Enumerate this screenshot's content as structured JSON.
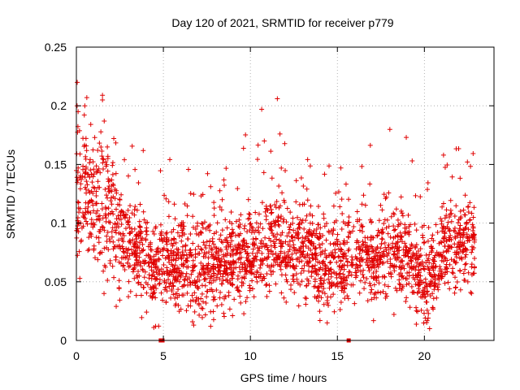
{
  "chart_data": {
    "type": "scatter",
    "title": "Day 120 of 2021, SRMTID for receiver p779",
    "xlabel": "GPS time / hours",
    "ylabel": "SRMTID / TECUs",
    "xlim": [
      0,
      24
    ],
    "ylim": [
      0,
      0.25
    ],
    "xticks": [
      0,
      5,
      10,
      15,
      20
    ],
    "yticks": [
      0,
      0.05,
      0.1,
      0.15,
      0.2,
      0.25
    ],
    "xtick_labels": [
      "0",
      "5",
      "10",
      "15",
      "20"
    ],
    "ytick_labels": [
      "0",
      "0.05",
      "0.1",
      "0.15",
      "0.2",
      "0.25"
    ],
    "grid": true,
    "marker": "+",
    "color": "#e00000",
    "x_data_range": [
      0,
      22.9
    ],
    "outlier_points": [
      [
        0.05,
        0.22
      ],
      [
        0.1,
        0.195
      ],
      [
        0.6,
        0.207
      ],
      [
        1.5,
        0.209
      ],
      [
        1.5,
        0.205
      ],
      [
        1.6,
        0.187
      ],
      [
        10.65,
        0.197
      ],
      [
        11.55,
        0.206
      ],
      [
        11.7,
        0.176
      ],
      [
        10.8,
        0.17
      ],
      [
        15.2,
        0.147
      ],
      [
        21.1,
        0.158
      ],
      [
        20.3,
        0.01
      ],
      [
        4.45,
        0.011
      ],
      [
        14.0,
        0.017
      ]
    ],
    "zero_markers": [
      [
        4.85,
        0.0
      ],
      [
        4.95,
        0.0
      ],
      [
        15.65,
        0.0
      ]
    ],
    "trend": [
      [
        0.0,
        0.115
      ],
      [
        0.5,
        0.128
      ],
      [
        1.0,
        0.112
      ],
      [
        1.5,
        0.112
      ],
      [
        2.0,
        0.108
      ],
      [
        2.5,
        0.098
      ],
      [
        3.0,
        0.08
      ],
      [
        3.5,
        0.072
      ],
      [
        4.0,
        0.068
      ],
      [
        4.5,
        0.062
      ],
      [
        5.0,
        0.064
      ],
      [
        5.5,
        0.064
      ],
      [
        6.0,
        0.065
      ],
      [
        6.5,
        0.063
      ],
      [
        7.0,
        0.063
      ],
      [
        7.5,
        0.062
      ],
      [
        8.0,
        0.063
      ],
      [
        8.5,
        0.062
      ],
      [
        9.0,
        0.064
      ],
      [
        9.5,
        0.068
      ],
      [
        10.0,
        0.07
      ],
      [
        10.5,
        0.074
      ],
      [
        11.0,
        0.079
      ],
      [
        11.5,
        0.082
      ],
      [
        12.0,
        0.08
      ],
      [
        12.5,
        0.078
      ],
      [
        13.0,
        0.076
      ],
      [
        13.5,
        0.073
      ],
      [
        14.0,
        0.066
      ],
      [
        14.5,
        0.064
      ],
      [
        15.0,
        0.066
      ],
      [
        15.5,
        0.068
      ],
      [
        16.0,
        0.07
      ],
      [
        16.5,
        0.07
      ],
      [
        17.0,
        0.07
      ],
      [
        17.5,
        0.071
      ],
      [
        18.0,
        0.072
      ],
      [
        18.5,
        0.073
      ],
      [
        19.0,
        0.068
      ],
      [
        19.5,
        0.058
      ],
      [
        20.0,
        0.053
      ],
      [
        20.5,
        0.056
      ],
      [
        21.0,
        0.075
      ],
      [
        21.5,
        0.082
      ],
      [
        22.0,
        0.085
      ],
      [
        22.5,
        0.085
      ],
      [
        22.9,
        0.084
      ]
    ]
  }
}
